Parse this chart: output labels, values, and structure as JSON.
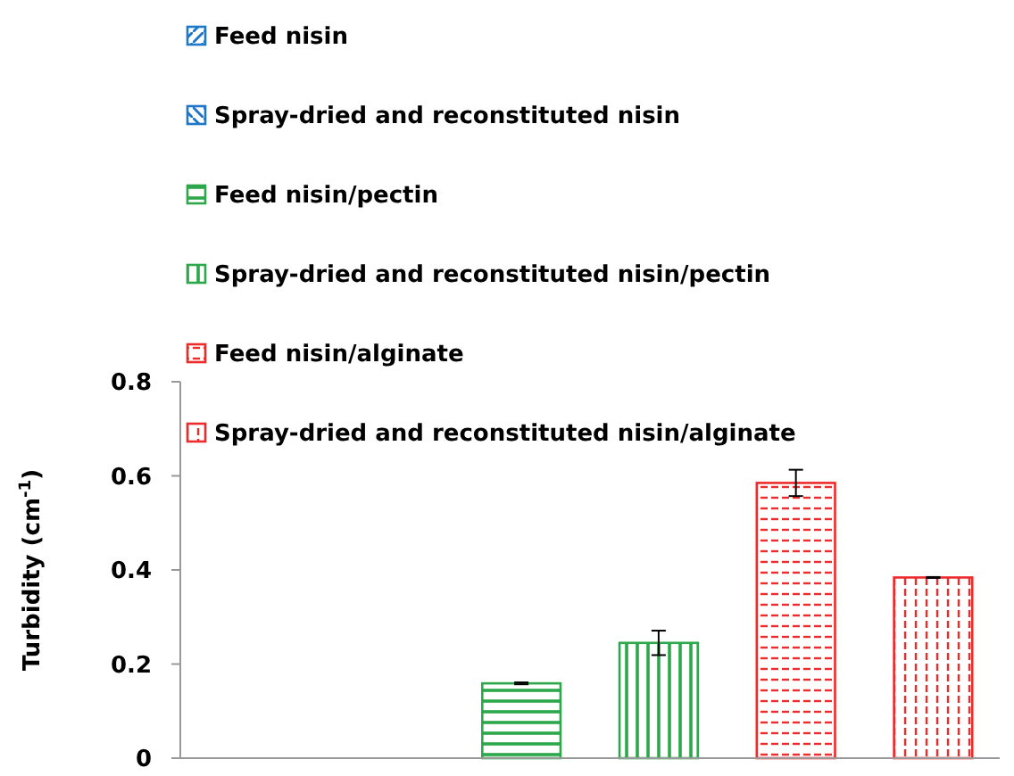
{
  "chart_data": {
    "type": "bar",
    "ylabel": "Turbidity (cm$^{-1}$)",
    "categories": [
      null,
      null,
      null,
      null,
      null,
      null
    ],
    "ylim": [
      0,
      0.8
    ],
    "yticks": [
      0,
      0.2,
      0.4,
      0.6,
      0.8
    ],
    "grid": false,
    "legend": "top left",
    "tick_labels": "y",
    "series": [
      {
        "name": "Feed nisin",
        "color": "#1f77c8",
        "values": [
          0,
          null,
          null,
          null,
          null,
          null
        ],
        "errors": [
          null,
          null,
          null,
          null,
          null,
          null
        ]
      },
      {
        "name": "Spray-dried and reconstituted nisin",
        "color": "#1f77c8",
        "values": [
          null,
          0,
          null,
          null,
          null,
          null
        ],
        "errors": [
          null,
          null,
          null,
          null,
          null,
          null
        ]
      },
      {
        "name": "Feed nisin/pectin",
        "color": "#2ca84a",
        "values": [
          null,
          null,
          0.159,
          null,
          null,
          null
        ],
        "errors": [
          null,
          null,
          0.002,
          null,
          null,
          null
        ]
      },
      {
        "name": "Spray-dried and reconstituted nisin/pectin",
        "color": "#2ca84a",
        "values": [
          null,
          null,
          null,
          0.245,
          null,
          null
        ],
        "errors": [
          null,
          null,
          null,
          0.026,
          null,
          null
        ]
      },
      {
        "name": "Feed nisin/alginate",
        "color": "#ee2b2b",
        "values": [
          null,
          null,
          null,
          null,
          0.585,
          null
        ],
        "errors": [
          null,
          null,
          null,
          null,
          0.028,
          null
        ]
      },
      {
        "name": "Spray-dried and reconstituted nisin/alginate",
        "color": "#ee2b2b",
        "values": [
          null,
          null,
          null,
          null,
          null,
          0.384
        ],
        "errors": [
          null,
          null,
          null,
          null,
          null,
          0.001
        ]
      }
    ]
  }
}
